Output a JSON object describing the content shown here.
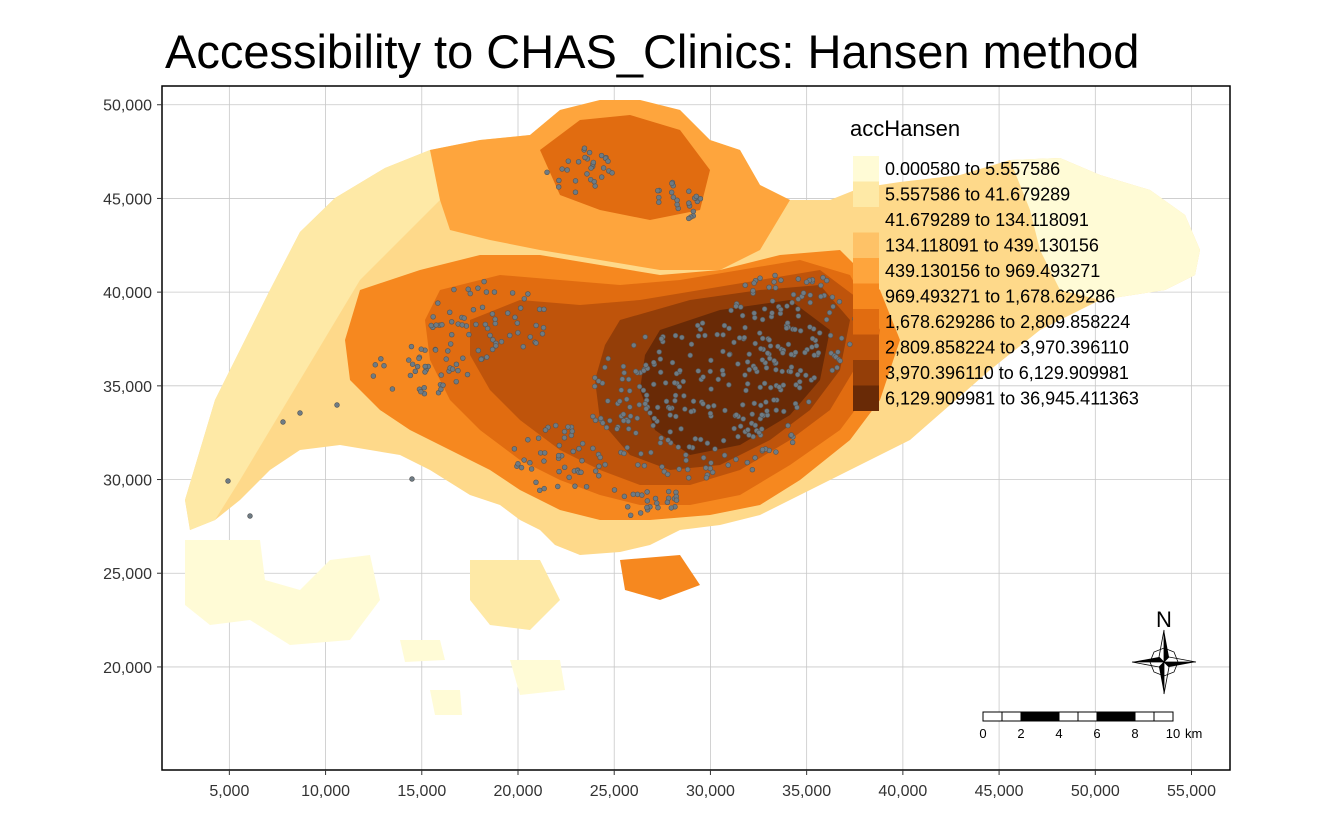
{
  "title": "Accessibility to CHAS_Clinics: Hansen method",
  "axes": {
    "x_ticks": [
      "5,000",
      "10,000",
      "15,000",
      "20,000",
      "25,000",
      "30,000",
      "35,000",
      "40,000",
      "45,000",
      "50,000",
      "55,000"
    ],
    "x_values": [
      5000,
      10000,
      15000,
      20000,
      25000,
      30000,
      35000,
      40000,
      45000,
      50000,
      55000
    ],
    "y_ticks": [
      "50,000",
      "45,000",
      "40,000",
      "35,000",
      "30,000",
      "25,000",
      "20,000"
    ],
    "y_values": [
      50000,
      45000,
      40000,
      35000,
      30000,
      25000,
      20000
    ],
    "xlim": [
      1500,
      57000
    ],
    "ylim": [
      14500,
      51000
    ]
  },
  "legend": {
    "title": "accHansen",
    "classes": [
      {
        "label": "0.000580 to 5.557586",
        "color": "#fffbd6"
      },
      {
        "label": "5.557586 to 41.679289",
        "color": "#fee9a6"
      },
      {
        "label": "41.679289 to 134.118091",
        "color": "#fed98a"
      },
      {
        "label": "134.118091 to 439.130156",
        "color": "#fec267"
      },
      {
        "label": "439.130156 to 969.493271",
        "color": "#fea53d"
      },
      {
        "label": "969.493271 to 1,678.629286",
        "color": "#f6881f"
      },
      {
        "label": "1,678.629286 to 2,809.858224",
        "color": "#e16c10"
      },
      {
        "label": "2,809.858224 to 3,970.396110",
        "color": "#bf540b"
      },
      {
        "label": "3,970.396110 to 6,129.909981",
        "color": "#943e08"
      },
      {
        "label": "6,129.909981 to 36,945.411363",
        "color": "#692a06"
      }
    ]
  },
  "scale_bar": {
    "labels": [
      "0",
      "2",
      "4",
      "6",
      "8",
      "10"
    ],
    "unit": "km"
  },
  "north_arrow": {
    "label": "N",
    "icon": "compass-rose-icon"
  },
  "clinic_marker_color": "#6e7b84"
}
